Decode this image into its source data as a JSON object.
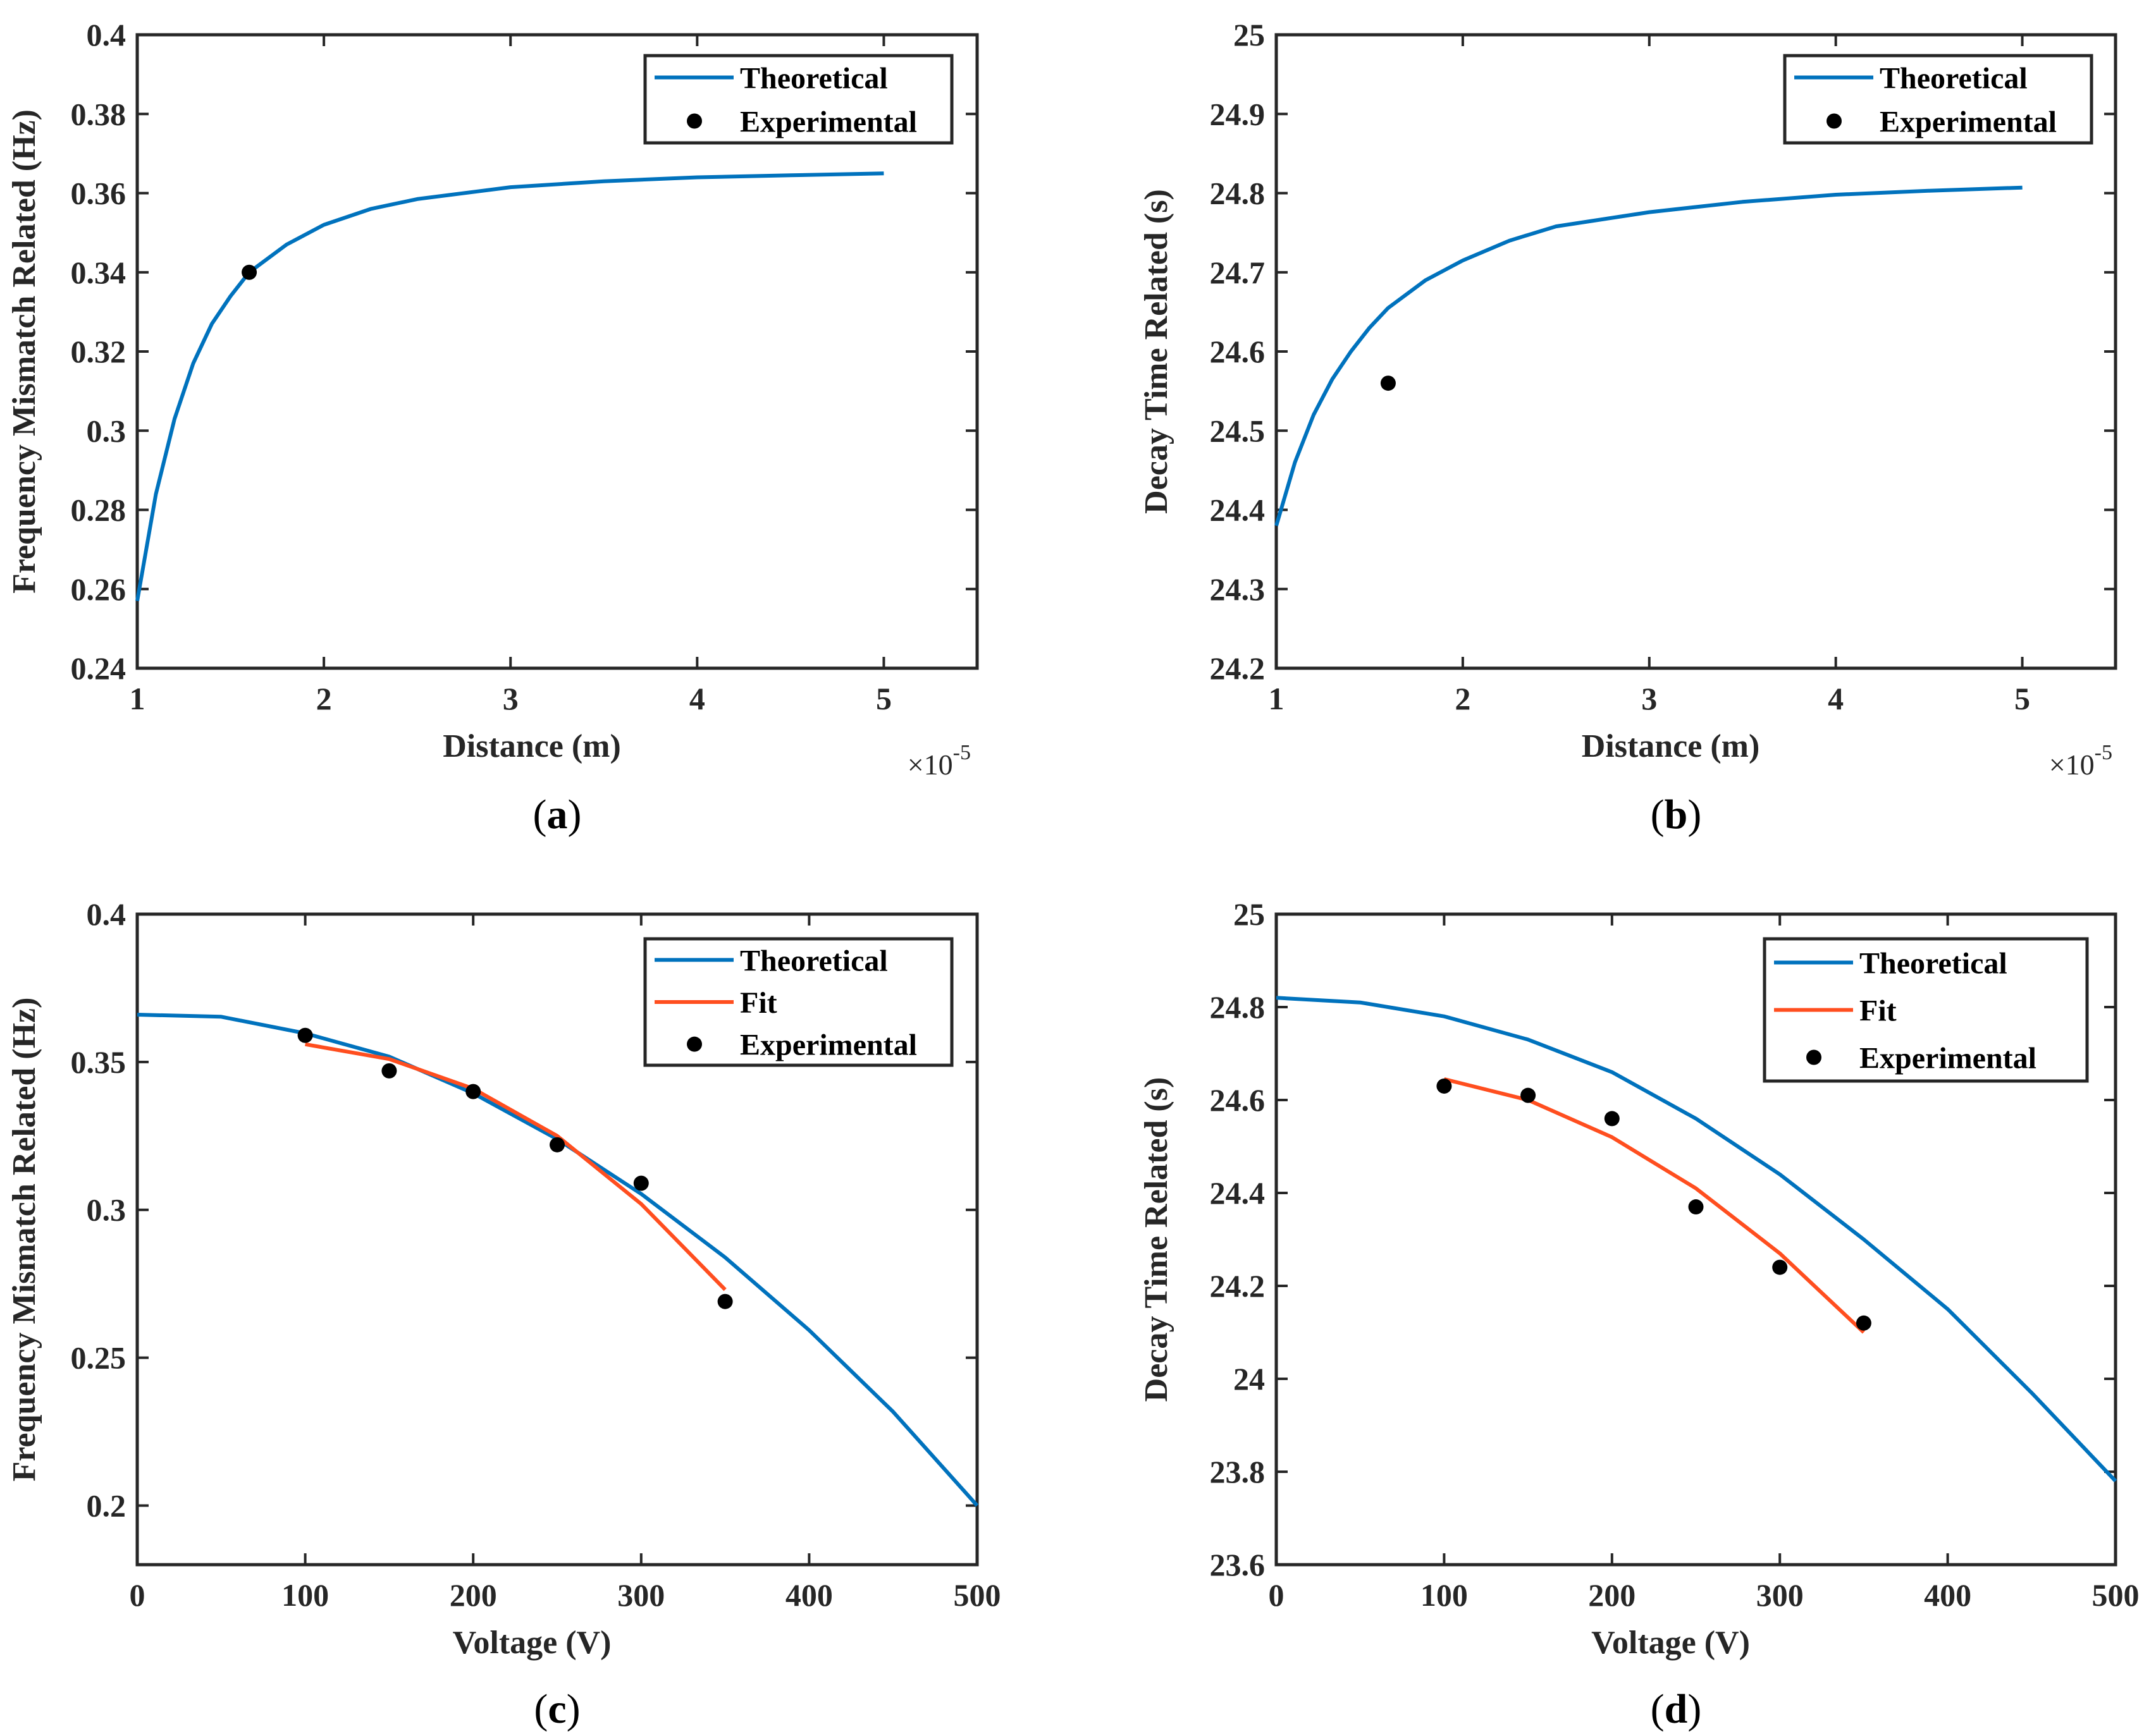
{
  "colors": {
    "theoretical": "#0072BD",
    "fit": "#FF4E1F",
    "experimental": "#000000",
    "axes": "#262626"
  },
  "chart_data": [
    {
      "id": "a",
      "panel_label": "(a)",
      "type": "line",
      "xlabel": "Distance (m)",
      "ylabel": "Frequency Mismatch Related (Hz)",
      "xlim": [
        1,
        5.5
      ],
      "ylim": [
        0.24,
        0.4
      ],
      "x_scale_exponent": "-5",
      "xticks": [
        1,
        2,
        3,
        4,
        5
      ],
      "xtick_labels": [
        "1",
        "2",
        "3",
        "4",
        "5"
      ],
      "yticks": [
        0.24,
        0.26,
        0.28,
        0.3,
        0.32,
        0.34,
        0.36,
        0.38,
        0.4
      ],
      "ytick_labels": [
        "0.24",
        "0.26",
        "0.28",
        "0.3",
        "0.32",
        "0.34",
        "0.36",
        "0.38",
        "0.4"
      ],
      "legend_position": "top-right",
      "series": [
        {
          "name": "Theoretical",
          "kind": "line",
          "x": [
            1.0,
            1.1,
            1.2,
            1.3,
            1.4,
            1.5,
            1.6,
            1.8,
            2.0,
            2.25,
            2.5,
            3.0,
            3.5,
            4.0,
            4.5,
            5.0
          ],
          "y": [
            0.257,
            0.284,
            0.303,
            0.317,
            0.327,
            0.334,
            0.34,
            0.347,
            0.352,
            0.356,
            0.3585,
            0.3615,
            0.363,
            0.364,
            0.3645,
            0.365
          ]
        },
        {
          "name": "Experimental",
          "kind": "scatter",
          "x": [
            1.6
          ],
          "y": [
            0.34
          ]
        }
      ]
    },
    {
      "id": "b",
      "panel_label": "(b)",
      "type": "line",
      "xlabel": "Distance (m)",
      "ylabel": "Decay Time Related (s)",
      "xlim": [
        1,
        5.5
      ],
      "ylim": [
        24.2,
        25
      ],
      "x_scale_exponent": "-5",
      "xticks": [
        1,
        2,
        3,
        4,
        5
      ],
      "xtick_labels": [
        "1",
        "2",
        "3",
        "4",
        "5"
      ],
      "yticks": [
        24.2,
        24.3,
        24.4,
        24.5,
        24.6,
        24.7,
        24.8,
        24.9,
        25
      ],
      "ytick_labels": [
        "24.2",
        "24.3",
        "24.4",
        "24.5",
        "24.6",
        "24.7",
        "24.8",
        "24.9",
        "25"
      ],
      "legend_position": "top-right",
      "series": [
        {
          "name": "Theoretical",
          "kind": "line",
          "x": [
            1.0,
            1.1,
            1.2,
            1.3,
            1.4,
            1.5,
            1.6,
            1.8,
            2.0,
            2.25,
            2.5,
            3.0,
            3.5,
            4.0,
            4.5,
            5.0
          ],
          "y": [
            24.38,
            24.46,
            24.52,
            24.565,
            24.6,
            24.63,
            24.655,
            24.69,
            24.715,
            24.74,
            24.758,
            24.776,
            24.789,
            24.798,
            24.803,
            24.807
          ]
        },
        {
          "name": "Experimental",
          "kind": "scatter",
          "x": [
            1.6
          ],
          "y": [
            24.56
          ]
        }
      ]
    },
    {
      "id": "c",
      "panel_label": "(c)",
      "type": "line",
      "xlabel": "Voltage (V)",
      "ylabel": "Frequency Mismatch Related (Hz)",
      "xlim": [
        0,
        500
      ],
      "ylim": [
        0.18,
        0.4
      ],
      "xticks": [
        0,
        100,
        200,
        300,
        400,
        500
      ],
      "xtick_labels": [
        "0",
        "100",
        "200",
        "300",
        "400",
        "500"
      ],
      "yticks": [
        0.2,
        0.25,
        0.3,
        0.35,
        0.4
      ],
      "ytick_labels": [
        "0.2",
        "0.25",
        "0.3",
        "0.35",
        "0.4"
      ],
      "legend_position": "top-right",
      "series": [
        {
          "name": "Theoretical",
          "kind": "line",
          "x": [
            0,
            50,
            100,
            150,
            200,
            250,
            300,
            350,
            400,
            450,
            500
          ],
          "y": [
            0.366,
            0.3653,
            0.3597,
            0.3518,
            0.3394,
            0.3239,
            0.3054,
            0.2839,
            0.2593,
            0.2317,
            0.2
          ]
        },
        {
          "name": "Fit",
          "kind": "line",
          "x": [
            100,
            150,
            200,
            250,
            300,
            350
          ],
          "y": [
            0.356,
            0.351,
            0.341,
            0.325,
            0.302,
            0.273
          ]
        },
        {
          "name": "Experimental",
          "kind": "scatter",
          "x": [
            100,
            150,
            200,
            250,
            300,
            350
          ],
          "y": [
            0.359,
            0.347,
            0.34,
            0.322,
            0.309,
            0.269
          ]
        }
      ]
    },
    {
      "id": "d",
      "panel_label": "(d)",
      "type": "line",
      "xlabel": "Voltage (V)",
      "ylabel": "Decay Time Related (s)",
      "xlim": [
        0,
        500
      ],
      "ylim": [
        23.6,
        25
      ],
      "xticks": [
        0,
        100,
        200,
        300,
        400,
        500
      ],
      "xtick_labels": [
        "0",
        "100",
        "200",
        "300",
        "400",
        "500"
      ],
      "yticks": [
        23.6,
        23.8,
        24,
        24.2,
        24.4,
        24.6,
        24.8,
        25
      ],
      "ytick_labels": [
        "23.6",
        "23.8",
        "24",
        "24.2",
        "24.4",
        "24.6",
        "24.8",
        "25"
      ],
      "legend_position": "top-right",
      "series": [
        {
          "name": "Theoretical",
          "kind": "line",
          "x": [
            0,
            50,
            100,
            150,
            200,
            250,
            300,
            350,
            400,
            450,
            500
          ],
          "y": [
            24.82,
            24.81,
            24.78,
            24.73,
            24.66,
            24.56,
            24.44,
            24.3,
            24.15,
            23.97,
            23.78
          ]
        },
        {
          "name": "Fit",
          "kind": "line",
          "x": [
            100,
            150,
            200,
            250,
            300,
            350
          ],
          "y": [
            24.645,
            24.6,
            24.52,
            24.41,
            24.27,
            24.1
          ]
        },
        {
          "name": "Experimental",
          "kind": "scatter",
          "x": [
            100,
            150,
            200,
            250,
            300,
            350
          ],
          "y": [
            24.63,
            24.61,
            24.56,
            24.37,
            24.24,
            24.12
          ]
        }
      ]
    }
  ]
}
